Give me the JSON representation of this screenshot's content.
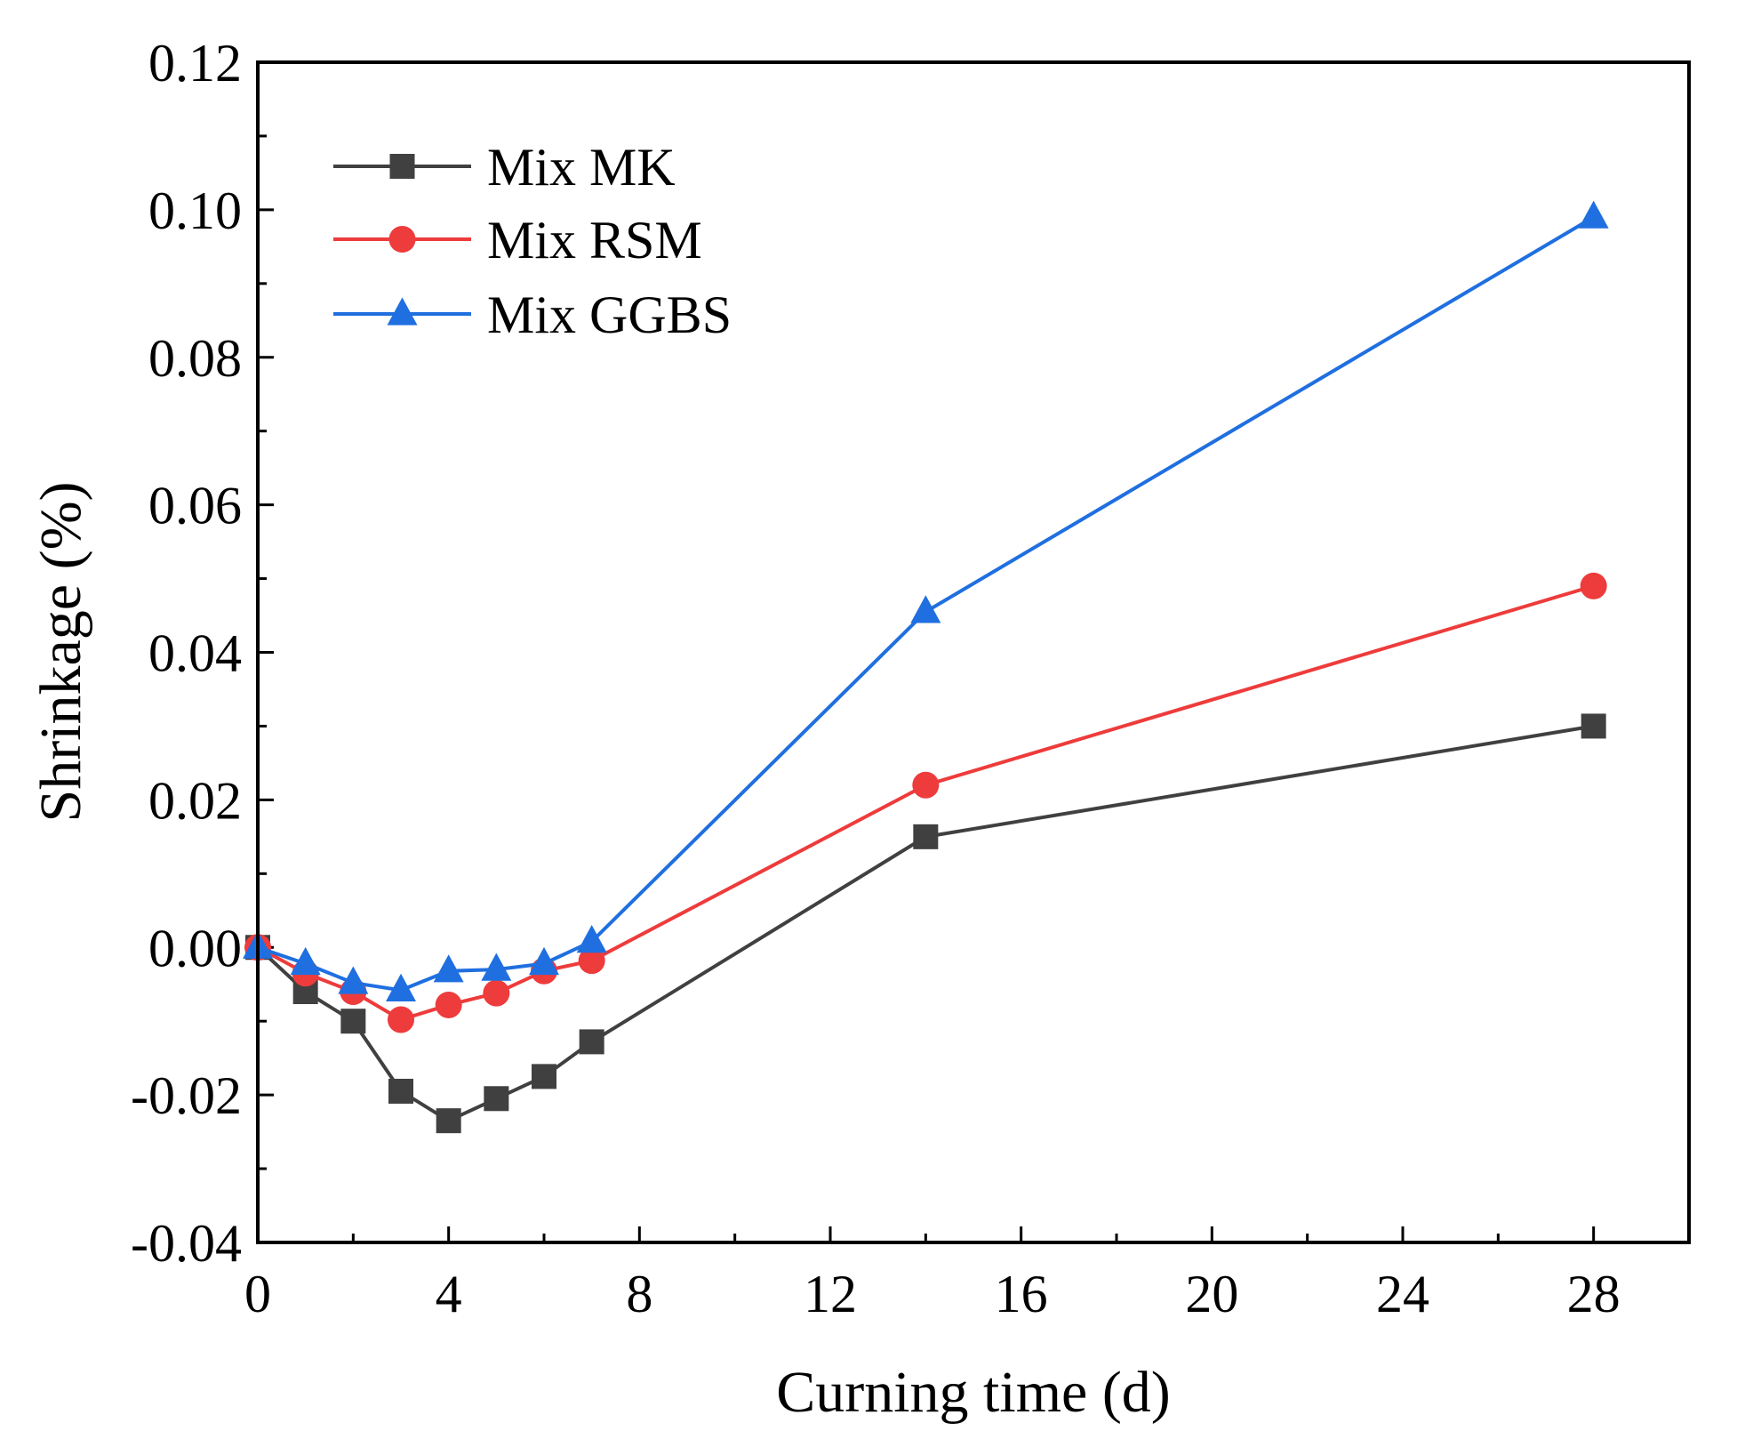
{
  "chart_data": {
    "type": "line",
    "title": "",
    "xlabel": "Curning time (d)",
    "ylabel": "Shrinkage (%)",
    "xlim": [
      0,
      30
    ],
    "ylim": [
      -0.04,
      0.12
    ],
    "xticks": [
      0,
      4,
      8,
      12,
      16,
      20,
      24,
      28
    ],
    "xtick_labels": [
      "0",
      "4",
      "8",
      "12",
      "16",
      "20",
      "24",
      "28"
    ],
    "yticks": [
      -0.04,
      -0.02,
      0.0,
      0.02,
      0.04,
      0.06,
      0.08,
      0.1,
      0.12
    ],
    "ytick_labels": [
      "-0.04",
      "-0.02",
      "0.00",
      "0.02",
      "0.04",
      "0.06",
      "0.08",
      "0.10",
      "0.12"
    ],
    "grid": false,
    "legend_position": "top-left",
    "x": [
      0,
      1,
      2,
      3,
      4,
      5,
      6,
      7,
      14,
      28
    ],
    "series": [
      {
        "name": "Mix MK",
        "color": "#404040",
        "marker": "square",
        "values": [
          0.0,
          -0.006,
          -0.01,
          -0.0195,
          -0.0235,
          -0.0205,
          -0.0175,
          -0.0128,
          0.015,
          0.03
        ]
      },
      {
        "name": "Mix RSM",
        "color": "#ee3b3b",
        "marker": "circle",
        "values": [
          0.0,
          -0.0035,
          -0.006,
          -0.0098,
          -0.0078,
          -0.0062,
          -0.0032,
          -0.0018,
          0.022,
          0.049
        ]
      },
      {
        "name": "Mix GGBS",
        "color": "#1f6fe0",
        "marker": "triangle",
        "values": [
          0.0,
          -0.0022,
          -0.0048,
          -0.0058,
          -0.0032,
          -0.003,
          -0.0022,
          0.0008,
          0.0455,
          0.099
        ]
      }
    ]
  }
}
